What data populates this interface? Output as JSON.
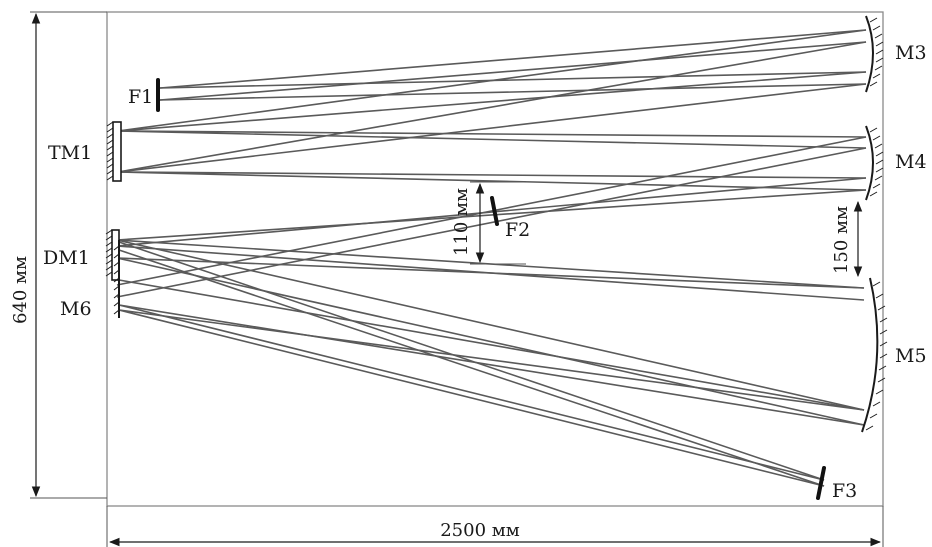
{
  "labels": {
    "f1": "F1",
    "f2": "F2",
    "f3": "F3",
    "tm1": "TM1",
    "dm1": "DM1",
    "m3": "M3",
    "m4": "M4",
    "m5": "M5",
    "m6": "M6"
  },
  "dimensions": {
    "height": "640 мм",
    "width": "2500 мм",
    "gap_f2": "110 мм",
    "gap_m4_m5": "150 мм"
  }
}
